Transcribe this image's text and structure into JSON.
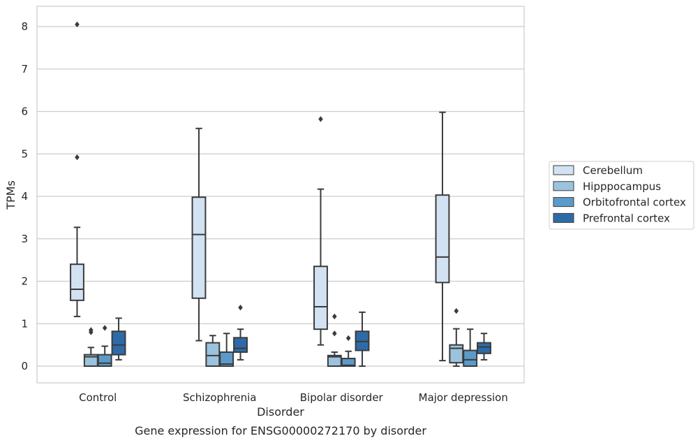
{
  "chart_data": {
    "type": "box",
    "title": "",
    "caption": "Gene expression for ENSG00000272170 by disorder",
    "xlabel": "Disorder",
    "ylabel": "TPMs",
    "ylim": [
      -0.4,
      8.5
    ],
    "yticks": [
      0,
      1,
      2,
      3,
      4,
      5,
      6,
      7,
      8
    ],
    "grid": true,
    "legend_position": "right",
    "categories": [
      "Control",
      "Schizophrenia",
      "Bipolar disorder",
      "Major depression"
    ],
    "series": [
      {
        "name": "Cerebellum",
        "color": "#d2e2f2",
        "boxes": [
          {
            "whisker_low": 1.17,
            "q1": 1.55,
            "median": 1.81,
            "q3": 2.4,
            "whisker_high": 3.27,
            "outliers": [
              4.92,
              8.05
            ]
          },
          {
            "whisker_low": 0.6,
            "q1": 1.6,
            "median": 3.1,
            "q3": 3.98,
            "whisker_high": 5.6,
            "outliers": []
          },
          {
            "whisker_low": 0.5,
            "q1": 0.87,
            "median": 1.4,
            "q3": 2.35,
            "whisker_high": 4.17,
            "outliers": [
              5.82
            ]
          },
          {
            "whisker_low": 0.13,
            "q1": 1.97,
            "median": 2.57,
            "q3": 4.03,
            "whisker_high": 5.98,
            "outliers": []
          }
        ]
      },
      {
        "name": "Hipppocampus",
        "color": "#9cc3de",
        "boxes": [
          {
            "whisker_low": 0.0,
            "q1": 0.0,
            "median": 0.22,
            "q3": 0.27,
            "whisker_high": 0.44,
            "outliers": [
              0.8,
              0.85
            ]
          },
          {
            "whisker_low": 0.0,
            "q1": 0.0,
            "median": 0.25,
            "q3": 0.55,
            "whisker_high": 0.72,
            "outliers": []
          },
          {
            "whisker_low": 0.0,
            "q1": 0.0,
            "median": 0.22,
            "q3": 0.25,
            "whisker_high": 0.33,
            "outliers": [
              0.77,
              1.17
            ]
          },
          {
            "whisker_low": 0.0,
            "q1": 0.08,
            "median": 0.42,
            "q3": 0.5,
            "whisker_high": 0.88,
            "outliers": [
              1.3
            ]
          }
        ]
      },
      {
        "name": "Orbitofrontal cortex",
        "color": "#5b9bca",
        "boxes": [
          {
            "whisker_low": 0.0,
            "q1": 0.0,
            "median": 0.07,
            "q3": 0.27,
            "whisker_high": 0.47,
            "outliers": [
              0.9
            ]
          },
          {
            "whisker_low": 0.0,
            "q1": 0.0,
            "median": 0.05,
            "q3": 0.33,
            "whisker_high": 0.77,
            "outliers": []
          },
          {
            "whisker_low": 0.0,
            "q1": 0.0,
            "median": 0.02,
            "q3": 0.18,
            "whisker_high": 0.35,
            "outliers": [
              0.66
            ]
          },
          {
            "whisker_low": 0.0,
            "q1": 0.0,
            "median": 0.15,
            "q3": 0.37,
            "whisker_high": 0.87,
            "outliers": []
          }
        ]
      },
      {
        "name": "Prefrontal cortex",
        "color": "#2d6ba8",
        "boxes": [
          {
            "whisker_low": 0.15,
            "q1": 0.27,
            "median": 0.5,
            "q3": 0.82,
            "whisker_high": 1.13,
            "outliers": []
          },
          {
            "whisker_low": 0.15,
            "q1": 0.33,
            "median": 0.42,
            "q3": 0.67,
            "whisker_high": 0.87,
            "outliers": [
              1.38
            ]
          },
          {
            "whisker_low": 0.0,
            "q1": 0.37,
            "median": 0.58,
            "q3": 0.82,
            "whisker_high": 1.27,
            "outliers": []
          },
          {
            "whisker_low": 0.15,
            "q1": 0.3,
            "median": 0.45,
            "q3": 0.55,
            "whisker_high": 0.77,
            "outliers": []
          }
        ]
      }
    ]
  }
}
